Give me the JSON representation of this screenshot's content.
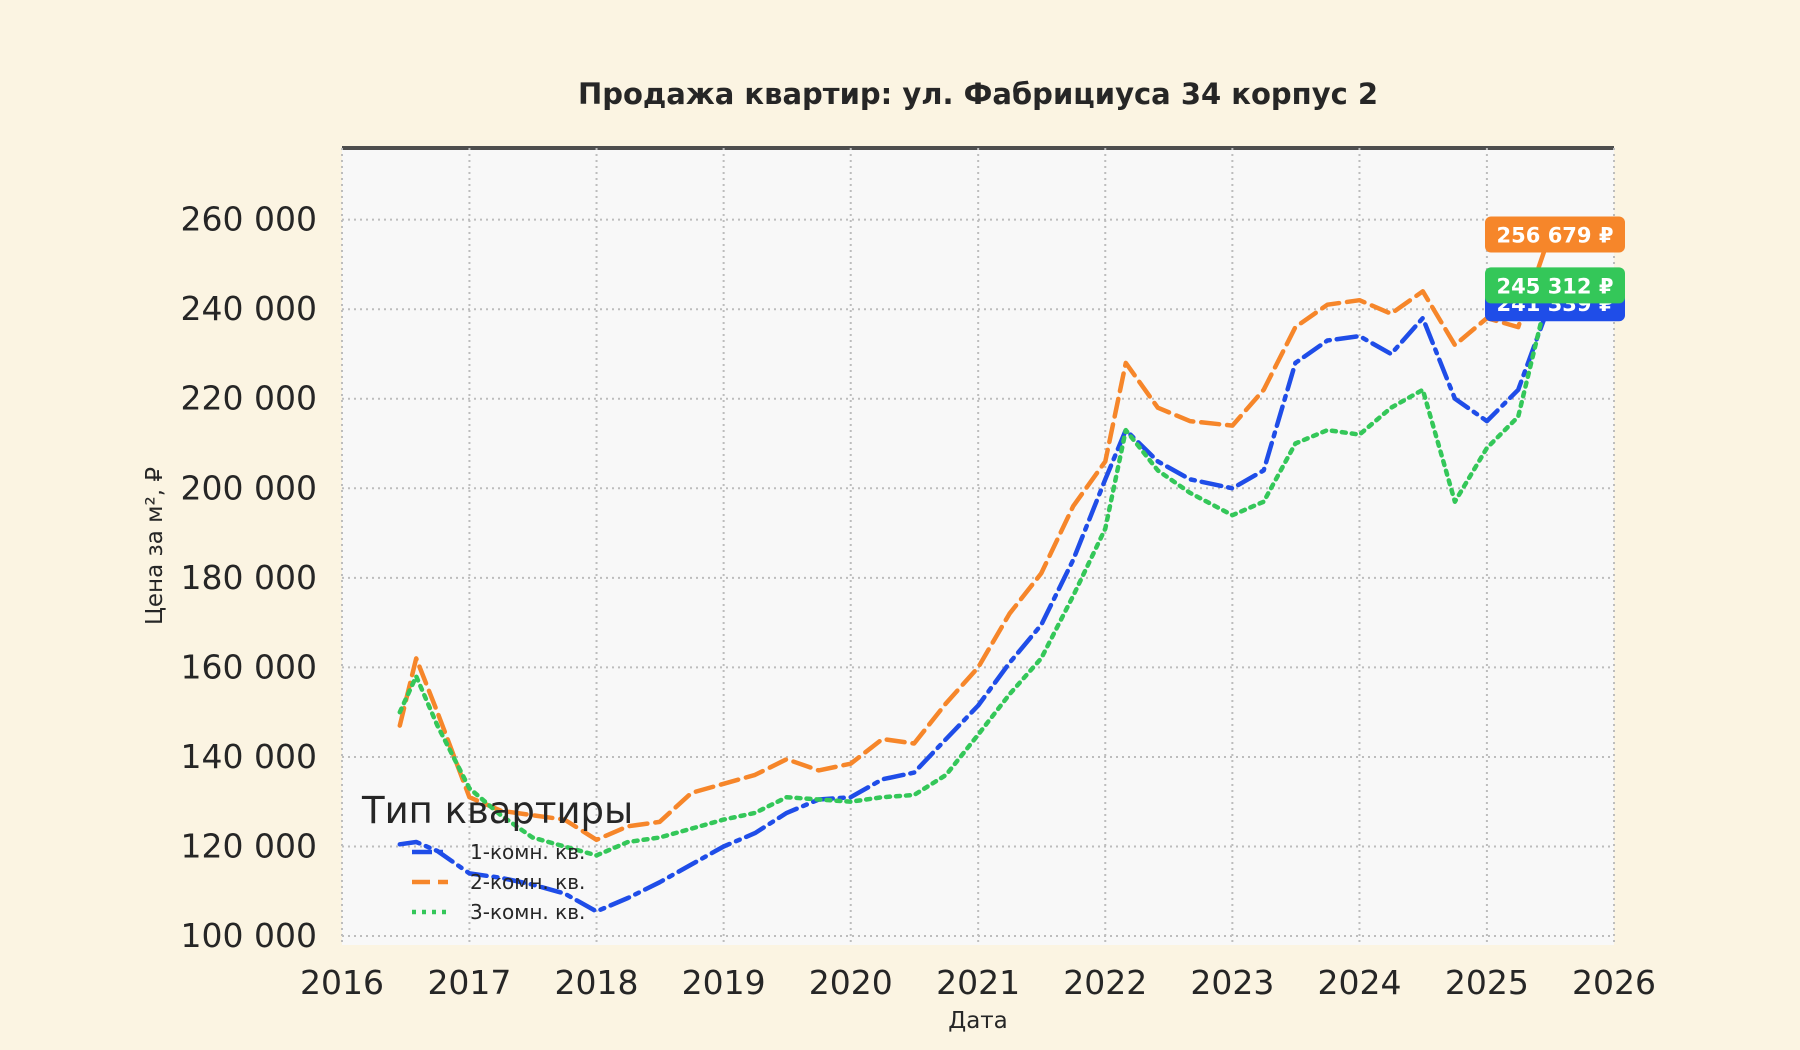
{
  "colors": {
    "background": "#fbf4e2",
    "plot_background": "#f8f8f8",
    "grid": "#bdbdbd",
    "text": "#262626",
    "series_1": "#1f4de8",
    "series_2": "#f6862a",
    "series_3": "#34c759"
  },
  "chart_data": {
    "type": "line",
    "title": "Продажа квартир: ул. Фабрициуса 34 корпус 2",
    "xlabel": "Дата",
    "ylabel": "Цена за м², ₽",
    "x_axis": "date",
    "xlim": [
      "2016-01-01",
      "2026-01-01"
    ],
    "ylim": [
      98000,
      276000
    ],
    "x_ticks": [
      "2016",
      "2017",
      "2018",
      "2019",
      "2020",
      "2021",
      "2022",
      "2023",
      "2024",
      "2025",
      "2026"
    ],
    "y_ticks": [
      100000,
      120000,
      140000,
      160000,
      180000,
      200000,
      220000,
      240000,
      260000
    ],
    "y_tick_labels": [
      "100 000",
      "120 000",
      "140 000",
      "160 000",
      "180 000",
      "200 000",
      "220 000",
      "240 000",
      "260 000"
    ],
    "grid": true,
    "legend": {
      "title": "Тип квартиры",
      "placement": "lower-left"
    },
    "series": [
      {
        "name": "1-комн. кв.",
        "color": "#1f4de8",
        "style": "dashdot",
        "last_value_label": "241 339 ₽",
        "points": [
          [
            "2016-06-15",
            120500
          ],
          [
            "2016-08-01",
            121000
          ],
          [
            "2016-10-01",
            119000
          ],
          [
            "2017-01-01",
            114000
          ],
          [
            "2017-04-01",
            113000
          ],
          [
            "2017-07-01",
            111500
          ],
          [
            "2017-10-01",
            109500
          ],
          [
            "2018-01-01",
            105500
          ],
          [
            "2018-04-01",
            108500
          ],
          [
            "2018-07-01",
            112000
          ],
          [
            "2018-10-01",
            116000
          ],
          [
            "2019-01-01",
            120000
          ],
          [
            "2019-04-01",
            123000
          ],
          [
            "2019-07-01",
            127500
          ],
          [
            "2019-10-01",
            130500
          ],
          [
            "2020-01-01",
            131000
          ],
          [
            "2020-04-01",
            135000
          ],
          [
            "2020-07-01",
            136500
          ],
          [
            "2020-10-01",
            144000
          ],
          [
            "2021-01-01",
            151500
          ],
          [
            "2021-04-01",
            161000
          ],
          [
            "2021-07-01",
            169500
          ],
          [
            "2021-10-01",
            184000
          ],
          [
            "2022-01-01",
            202000
          ],
          [
            "2022-03-01",
            213000
          ],
          [
            "2022-06-01",
            206000
          ],
          [
            "2022-09-01",
            202000
          ],
          [
            "2023-01-01",
            200000
          ],
          [
            "2023-04-01",
            204000
          ],
          [
            "2023-07-01",
            228000
          ],
          [
            "2023-10-01",
            233000
          ],
          [
            "2024-01-01",
            234000
          ],
          [
            "2024-04-01",
            230000
          ],
          [
            "2024-07-01",
            238000
          ],
          [
            "2024-10-01",
            220000
          ],
          [
            "2025-01-01",
            215000
          ],
          [
            "2025-04-01",
            222000
          ],
          [
            "2025-07-01",
            241339
          ]
        ]
      },
      {
        "name": "2-комн. кв.",
        "color": "#f6862a",
        "style": "dashed",
        "last_value_label": "256 679 ₽",
        "points": [
          [
            "2016-06-15",
            147000
          ],
          [
            "2016-08-01",
            162000
          ],
          [
            "2016-10-01",
            150000
          ],
          [
            "2017-01-01",
            131000
          ],
          [
            "2017-04-01",
            128000
          ],
          [
            "2017-07-01",
            127000
          ],
          [
            "2017-10-01",
            126000
          ],
          [
            "2018-01-01",
            121500
          ],
          [
            "2018-04-01",
            124500
          ],
          [
            "2018-07-01",
            125500
          ],
          [
            "2018-10-01",
            132000
          ],
          [
            "2019-01-01",
            134000
          ],
          [
            "2019-04-01",
            136000
          ],
          [
            "2019-07-01",
            139500
          ],
          [
            "2019-10-01",
            137000
          ],
          [
            "2020-01-01",
            138500
          ],
          [
            "2020-04-01",
            144000
          ],
          [
            "2020-07-01",
            143000
          ],
          [
            "2020-10-01",
            152000
          ],
          [
            "2021-01-01",
            160000
          ],
          [
            "2021-04-01",
            172000
          ],
          [
            "2021-07-01",
            181000
          ],
          [
            "2021-10-01",
            196000
          ],
          [
            "2022-01-01",
            206000
          ],
          [
            "2022-03-01",
            228000
          ],
          [
            "2022-06-01",
            218000
          ],
          [
            "2022-09-01",
            215000
          ],
          [
            "2023-01-01",
            214000
          ],
          [
            "2023-04-01",
            222000
          ],
          [
            "2023-07-01",
            236000
          ],
          [
            "2023-10-01",
            241000
          ],
          [
            "2024-01-01",
            242000
          ],
          [
            "2024-04-01",
            239000
          ],
          [
            "2024-07-01",
            244000
          ],
          [
            "2024-10-01",
            232000
          ],
          [
            "2025-01-01",
            238000
          ],
          [
            "2025-04-01",
            236000
          ],
          [
            "2025-07-01",
            256679
          ]
        ]
      },
      {
        "name": "3-комн. кв.",
        "color": "#34c759",
        "style": "dotted",
        "last_value_label": "245 312 ₽",
        "points": [
          [
            "2016-06-15",
            150000
          ],
          [
            "2016-08-01",
            158000
          ],
          [
            "2016-10-01",
            147000
          ],
          [
            "2017-01-01",
            133000
          ],
          [
            "2017-04-01",
            127000
          ],
          [
            "2017-07-01",
            122000
          ],
          [
            "2017-10-01",
            120000
          ],
          [
            "2018-01-01",
            118000
          ],
          [
            "2018-04-01",
            121000
          ],
          [
            "2018-07-01",
            122000
          ],
          [
            "2018-10-01",
            124000
          ],
          [
            "2019-01-01",
            126000
          ],
          [
            "2019-04-01",
            127500
          ],
          [
            "2019-07-01",
            131000
          ],
          [
            "2019-10-01",
            130500
          ],
          [
            "2020-01-01",
            130000
          ],
          [
            "2020-04-01",
            131000
          ],
          [
            "2020-07-01",
            131500
          ],
          [
            "2020-10-01",
            136000
          ],
          [
            "2021-01-01",
            145000
          ],
          [
            "2021-04-01",
            154000
          ],
          [
            "2021-07-01",
            162000
          ],
          [
            "2021-10-01",
            176000
          ],
          [
            "2022-01-01",
            191000
          ],
          [
            "2022-03-01",
            213000
          ],
          [
            "2022-06-01",
            204000
          ],
          [
            "2022-09-01",
            199000
          ],
          [
            "2023-01-01",
            194000
          ],
          [
            "2023-04-01",
            197000
          ],
          [
            "2023-07-01",
            210000
          ],
          [
            "2023-10-01",
            213000
          ],
          [
            "2024-01-01",
            212000
          ],
          [
            "2024-04-01",
            218000
          ],
          [
            "2024-07-01",
            222000
          ],
          [
            "2024-10-01",
            197000
          ],
          [
            "2025-01-01",
            209000
          ],
          [
            "2025-04-01",
            216000
          ],
          [
            "2025-07-01",
            245312
          ]
        ]
      }
    ]
  }
}
